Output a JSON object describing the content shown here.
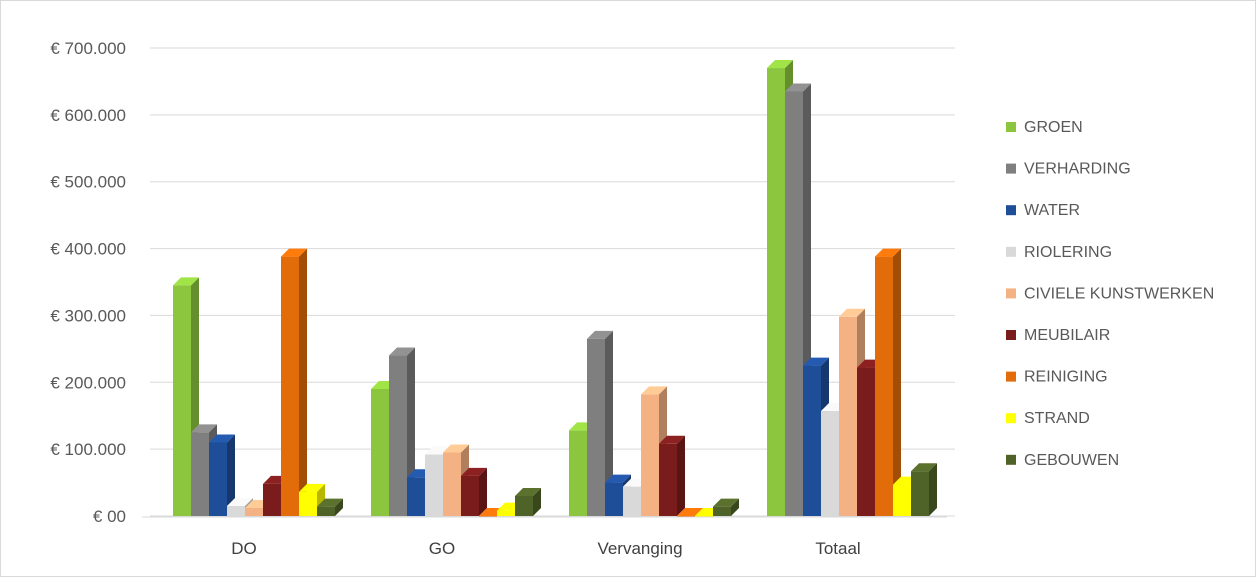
{
  "chart_data": {
    "type": "bar",
    "style": "3d-clustered-column",
    "categories": [
      "DO",
      "GO",
      "Vervanging",
      "Totaal"
    ],
    "series": [
      {
        "name": "GROEN",
        "color": "#8cc63f",
        "values": [
          345000,
          190000,
          128000,
          670000
        ]
      },
      {
        "name": "VERHARDING",
        "color": "#7f7f7f",
        "values": [
          125000,
          240000,
          265000,
          635000
        ]
      },
      {
        "name": "WATER",
        "color": "#1f4e99",
        "values": [
          110000,
          58000,
          50000,
          225000
        ]
      },
      {
        "name": "RIOLERING",
        "color": "#d9d9d9",
        "values": [
          15000,
          92000,
          44000,
          157000
        ]
      },
      {
        "name": "CIVIELE KUNSTWERKEN",
        "color": "#f4b183",
        "values": [
          12000,
          95000,
          182000,
          298000
        ]
      },
      {
        "name": "MEUBILAIR",
        "color": "#7b1c1c",
        "values": [
          48000,
          60000,
          108000,
          222000
        ]
      },
      {
        "name": "REINIGING",
        "color": "#e36c0a",
        "values": [
          388000,
          0,
          0,
          388000
        ]
      },
      {
        "name": "STRAND",
        "color": "#ffff00",
        "values": [
          36000,
          8000,
          0,
          47000
        ]
      },
      {
        "name": "GEBOUWEN",
        "color": "#4f6228",
        "values": [
          14000,
          30000,
          14000,
          67000
        ]
      }
    ],
    "title": "",
    "xlabel": "",
    "ylabel": "",
    "ylim": [
      0,
      700000
    ],
    "ytick_values": [
      0,
      100000,
      200000,
      300000,
      400000,
      500000,
      600000,
      700000
    ],
    "ytick_labels": [
      "€ 00",
      "€ 100.000",
      "€ 200.000",
      "€ 300.000",
      "€ 400.000",
      "€ 500.000",
      "€ 600.000",
      "€ 700.000"
    ],
    "grid": true,
    "legend_position": "right"
  }
}
